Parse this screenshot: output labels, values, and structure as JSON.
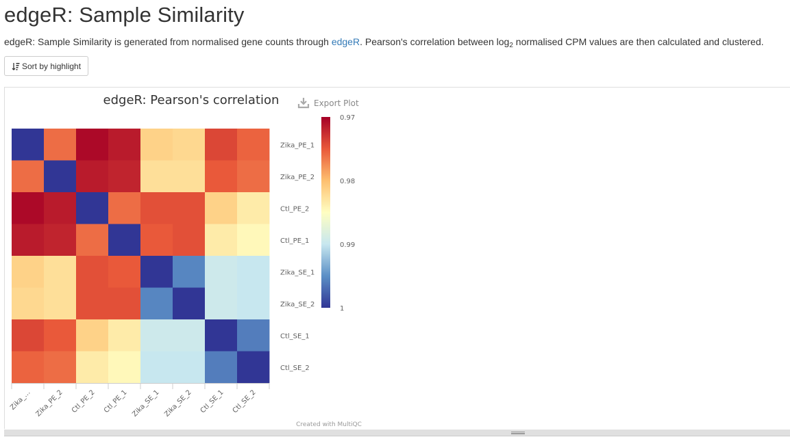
{
  "page": {
    "title": "edgeR: Sample Similarity",
    "description_before_link": "edgeR: Sample Similarity is generated from normalised gene counts through ",
    "description_link": "edgeR",
    "description_mid": ". Pearson's correlation between log",
    "description_sub": "2",
    "description_after": " normalised CPM values are then calculated and clustered."
  },
  "toolbar": {
    "sort_label": "Sort by highlight",
    "sort_icon": "sort-amount-icon"
  },
  "plot": {
    "export_label": "Export Plot",
    "export_icon": "download-icon",
    "credit": "Created with MultiQC"
  },
  "chart_data": {
    "type": "heatmap",
    "title": "edgeR: Pearson's correlation",
    "xcats": [
      "Zika_…",
      "Zika_PE_2",
      "Ctl_PE_2",
      "Ctl_PE_1",
      "Zika_SE_1",
      "Zika_SE_2",
      "Ctl_SE_1",
      "Ctl_SE_2"
    ],
    "ycats": [
      "Zika_PE_1",
      "Zika_PE_2",
      "Ctl_PE_2",
      "Ctl_PE_1",
      "Zika_SE_1",
      "Zika_SE_2",
      "Ctl_SE_1",
      "Ctl_SE_2"
    ],
    "values": [
      [
        1.0,
        0.976,
        0.9705,
        0.9715,
        0.9815,
        0.982,
        0.974,
        0.9755
      ],
      [
        0.976,
        1.0,
        0.9715,
        0.972,
        0.9825,
        0.9825,
        0.975,
        0.976
      ],
      [
        0.9705,
        0.9715,
        1.0,
        0.976,
        0.9745,
        0.9745,
        0.9815,
        0.9835
      ],
      [
        0.9715,
        0.972,
        0.976,
        1.0,
        0.975,
        0.9745,
        0.9835,
        0.9845
      ],
      [
        0.9815,
        0.9825,
        0.9745,
        0.975,
        1.0,
        0.9955,
        0.9895,
        0.99
      ],
      [
        0.982,
        0.9825,
        0.9745,
        0.9745,
        0.9955,
        1.0,
        0.9895,
        0.99
      ],
      [
        0.974,
        0.975,
        0.9815,
        0.9835,
        0.9895,
        0.9895,
        1.0,
        0.996
      ],
      [
        0.9755,
        0.976,
        0.9835,
        0.9845,
        0.99,
        0.99,
        0.996,
        1.0
      ]
    ],
    "colorbar": {
      "min": 0.97,
      "max": 1,
      "ticks": [
        "0.97",
        "0.98",
        "0.99",
        "1"
      ]
    },
    "colors": {
      "0.97": "#a50026",
      "0.975": "#e9593a",
      "0.98": "#fdbf6f",
      "0.985": "#fffec2",
      "0.99": "#c7e7ef",
      "0.995": "#5b8fc6",
      "1": "#313695"
    }
  }
}
